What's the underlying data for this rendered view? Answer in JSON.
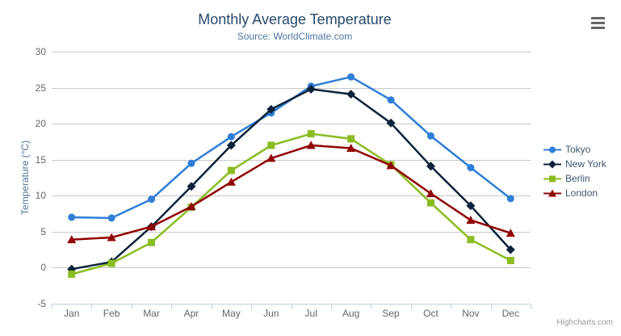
{
  "credits_label": "Highcharts.com",
  "chart_data": {
    "type": "line",
    "title": "Monthly Average Temperature",
    "subtitle": "Source: WorldClimate.com",
    "xlabel": "",
    "ylabel": "Temperature (°C)",
    "categories": [
      "Jan",
      "Feb",
      "Mar",
      "Apr",
      "May",
      "Jun",
      "Jul",
      "Aug",
      "Sep",
      "Oct",
      "Nov",
      "Dec"
    ],
    "series": [
      {
        "name": "Tokyo",
        "color": "#2f7ed8",
        "marker": "circle",
        "values": [
          7.0,
          6.9,
          9.5,
          14.5,
          18.2,
          21.5,
          25.2,
          26.5,
          23.3,
          18.3,
          13.9,
          9.6
        ]
      },
      {
        "name": "New York",
        "color": "#0d233a",
        "marker": "diamond",
        "values": [
          -0.2,
          0.8,
          5.7,
          11.3,
          17.0,
          22.0,
          24.8,
          24.1,
          20.1,
          14.1,
          8.6,
          2.5
        ]
      },
      {
        "name": "Berlin",
        "color": "#8bbc21",
        "marker": "square",
        "values": [
          -0.9,
          0.6,
          3.5,
          8.4,
          13.5,
          17.0,
          18.6,
          17.9,
          14.3,
          9.0,
          3.9,
          1.0
        ]
      },
      {
        "name": "London",
        "color": "#910000",
        "marker": "triangle",
        "values": [
          3.9,
          4.2,
          5.7,
          8.5,
          11.9,
          15.2,
          17.0,
          16.6,
          14.2,
          10.3,
          6.6,
          4.8
        ]
      }
    ],
    "ylim": [
      -5,
      30
    ],
    "y_ticks": [
      -5,
      0,
      5,
      10,
      15,
      20,
      25,
      30
    ],
    "grid": true,
    "legend_position": "right",
    "colors": {
      "title": "#274b6d",
      "subtitle": "#4d759e",
      "axis_title": "#4d759e",
      "axis_labels": "#666666",
      "gridline": "#c8c8c8",
      "axis_line": "#c0d0e0",
      "legend_text": "#3e576f",
      "credits": "#999999",
      "menu_icon": "#666666"
    }
  }
}
